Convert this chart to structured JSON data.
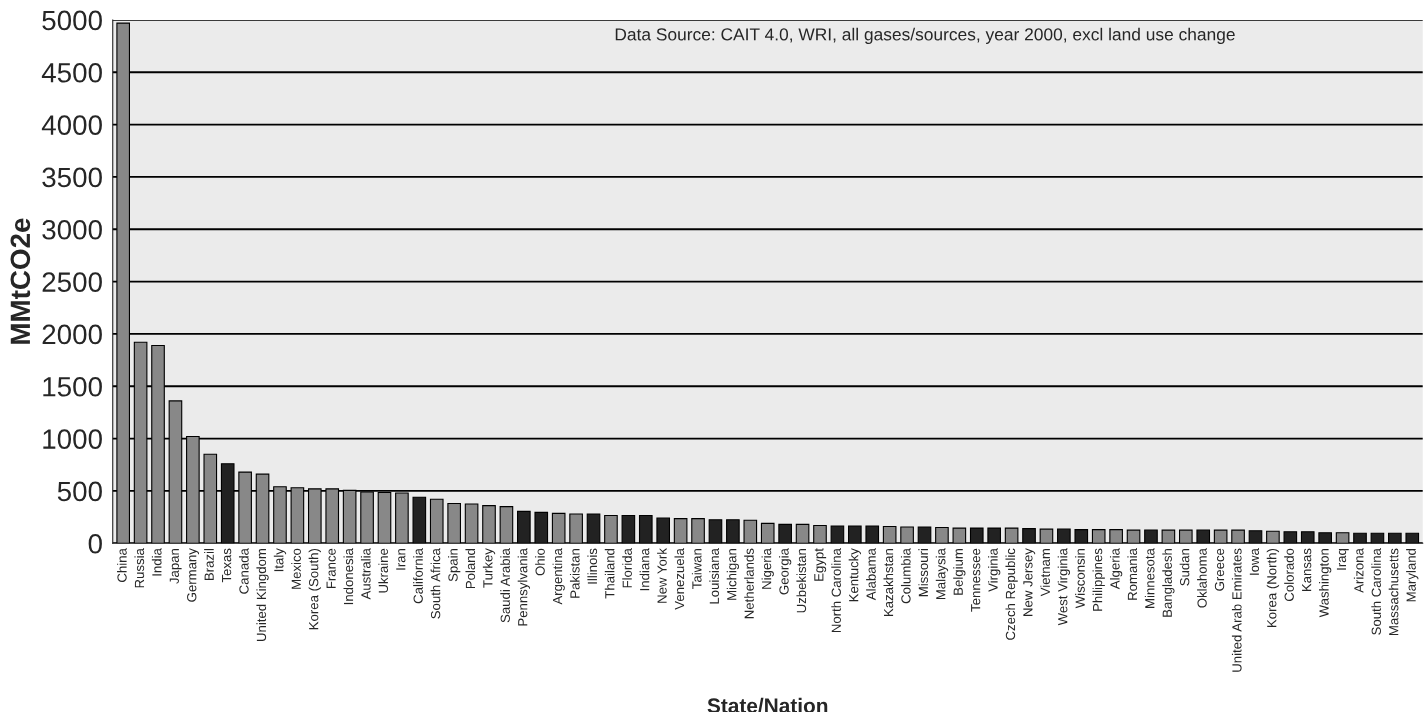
{
  "chart_data": {
    "type": "bar",
    "xlabel": "State/Nation",
    "ylabel": "MMtCO2e",
    "annotations": [
      "Data Source: CAIT 4.0, WRI, all gases/sources, year 2000, excl land use change"
    ],
    "categories": [
      "China",
      "Russia",
      "India",
      "Japan",
      "Germany",
      "Brazil",
      "Texas",
      "Canada",
      "United Kingdom",
      "Italy",
      "Mexico",
      "Korea (South)",
      "France",
      "Indonesia",
      "Australia",
      "Ukraine",
      "Iran",
      "California",
      "South Africa",
      "Spain",
      "Poland",
      "Turkey",
      "Saudi Arabia",
      "Pennsylvania",
      "Ohio",
      "Argentina",
      "Pakistan",
      "Illinois",
      "Thailand",
      "Florida",
      "Indiana",
      "New York",
      "Venezuela",
      "Taiwan",
      "Louisiana",
      "Michigan",
      "Netherlands",
      "Nigeria",
      "Georgia",
      "Uzbekistan",
      "Egypt",
      "North Carolina",
      "Kentucky",
      "Alabama",
      "Kazakhstan",
      "Columbia",
      "Missouri",
      "Malaysia",
      "Belgium",
      "Tennessee",
      "Virginia",
      "Czech Republic",
      "New Jersey",
      "Vietnam",
      "West Virginia",
      "Wisconsin",
      "Philippines",
      "Algeria",
      "Romania",
      "Minnesota",
      "Bangladesh",
      "Sudan",
      "Oklahoma",
      "Greece",
      "United Arab Emirates",
      "Iowa",
      "Korea (North)",
      "Colorado",
      "Kansas",
      "Washington",
      "Iraq",
      "Arizona",
      "South Carolina",
      "Massachusetts",
      "Maryland"
    ],
    "values": [
      4970,
      1920,
      1890,
      1360,
      1020,
      850,
      760,
      680,
      660,
      540,
      530,
      520,
      520,
      505,
      490,
      485,
      480,
      440,
      420,
      380,
      375,
      360,
      350,
      305,
      295,
      285,
      280,
      280,
      265,
      265,
      265,
      240,
      235,
      235,
      225,
      225,
      220,
      190,
      180,
      180,
      170,
      165,
      165,
      165,
      160,
      155,
      155,
      150,
      145,
      145,
      145,
      145,
      140,
      135,
      135,
      130,
      130,
      130,
      125,
      125,
      125,
      125,
      125,
      125,
      125,
      120,
      115,
      110,
      110,
      100,
      100,
      95,
      95,
      95,
      95
    ],
    "colors": [
      "#888888",
      "#888888",
      "#888888",
      "#888888",
      "#888888",
      "#888888",
      "#222222",
      "#888888",
      "#888888",
      "#888888",
      "#888888",
      "#888888",
      "#888888",
      "#888888",
      "#888888",
      "#888888",
      "#888888",
      "#222222",
      "#888888",
      "#888888",
      "#888888",
      "#888888",
      "#888888",
      "#222222",
      "#222222",
      "#888888",
      "#888888",
      "#222222",
      "#888888",
      "#222222",
      "#222222",
      "#222222",
      "#888888",
      "#888888",
      "#222222",
      "#222222",
      "#888888",
      "#888888",
      "#222222",
      "#888888",
      "#888888",
      "#222222",
      "#222222",
      "#222222",
      "#888888",
      "#888888",
      "#222222",
      "#888888",
      "#888888",
      "#222222",
      "#222222",
      "#888888",
      "#222222",
      "#888888",
      "#222222",
      "#222222",
      "#888888",
      "#888888",
      "#888888",
      "#222222",
      "#888888",
      "#888888",
      "#222222",
      "#888888",
      "#888888",
      "#222222",
      "#888888",
      "#222222",
      "#222222",
      "#222222",
      "#888888",
      "#222222",
      "#222222",
      "#222222",
      "#222222"
    ],
    "ylim": [
      0,
      5000
    ],
    "yticks": [
      0,
      500,
      1000,
      1500,
      2000,
      2500,
      3000,
      3500,
      4000,
      4500,
      5000
    ],
    "grid": "y",
    "legend": false
  }
}
